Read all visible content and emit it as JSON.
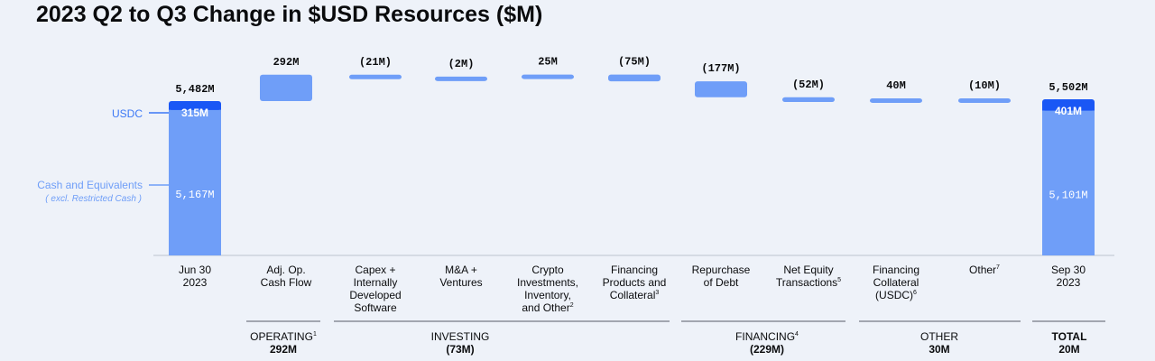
{
  "title": "2023 Q2 to Q3 Change in $USD Resources ($M)",
  "colors": {
    "usdc": "#1a57f5",
    "cash": "#6f9ef8",
    "floating": "#6f9ef8",
    "axis": "#bcc4d0",
    "label_blue": "#3c78f5",
    "text": "#0a0b0d"
  },
  "chart_data": {
    "type": "bar",
    "subtype": "waterfall",
    "unit": "$M",
    "start": {
      "category_lines": [
        "Jun 30",
        "2023"
      ],
      "total_label": "5,482M",
      "total": 5482,
      "segments": [
        {
          "name": "Cash and Equivalents",
          "value": 5167,
          "label": "5,167M"
        },
        {
          "name": "USDC",
          "value": 315,
          "label": "315M"
        }
      ]
    },
    "end": {
      "category_lines": [
        "Sep 30",
        "2023"
      ],
      "total_label": "5,502M",
      "total": 5502,
      "segments": [
        {
          "name": "Cash and Equivalents",
          "value": 5101,
          "label": "5,101M"
        },
        {
          "name": "USDC",
          "value": 401,
          "label": "401M"
        }
      ]
    },
    "changes": [
      {
        "category_lines": [
          "Adj. Op.",
          "Cash Flow"
        ],
        "sup": "",
        "value": 292,
        "label": "292M"
      },
      {
        "category_lines": [
          "Capex +",
          "Internally",
          "Developed",
          "Software"
        ],
        "sup": "",
        "value": -21,
        "label": "(21M)"
      },
      {
        "category_lines": [
          "M&A +",
          "Ventures"
        ],
        "sup": "",
        "value": -2,
        "label": "(2M)"
      },
      {
        "category_lines": [
          "Crypto",
          "Investments,",
          "Inventory,",
          "and Other"
        ],
        "sup": "2",
        "value": 25,
        "label": "25M"
      },
      {
        "category_lines": [
          "Financing",
          "Products and",
          "Collateral"
        ],
        "sup": "3",
        "value": -75,
        "label": "(75M)"
      },
      {
        "category_lines": [
          "Repurchase",
          "of Debt"
        ],
        "sup": "",
        "value": -177,
        "label": "(177M)"
      },
      {
        "category_lines": [
          "Net Equity",
          "Transactions"
        ],
        "sup": "5",
        "value": -52,
        "label": "(52M)"
      },
      {
        "category_lines": [
          "Financing",
          "Collateral",
          "(USDC)"
        ],
        "sup": "6",
        "value": 40,
        "label": "40M"
      },
      {
        "category_lines": [
          "Other"
        ],
        "sup": "7",
        "value": -10,
        "label": "(10M)"
      }
    ],
    "legend": {
      "usdc": "USDC",
      "cash": "Cash and Equivalents",
      "cash_note": "( excl. Restricted Cash )"
    },
    "groups": [
      {
        "name": "OPERATING",
        "sup": "1",
        "value_label": "292M",
        "bold_name": false
      },
      {
        "name": "INVESTING",
        "sup": "",
        "value_label": "(73M)",
        "bold_name": false
      },
      {
        "name": "FINANCING",
        "sup": "4",
        "value_label": "(229M)",
        "bold_name": false
      },
      {
        "name": "OTHER",
        "sup": "",
        "value_label": "30M",
        "bold_name": false
      },
      {
        "name": "TOTAL",
        "sup": "",
        "value_label": "20M",
        "bold_name": true
      }
    ]
  }
}
